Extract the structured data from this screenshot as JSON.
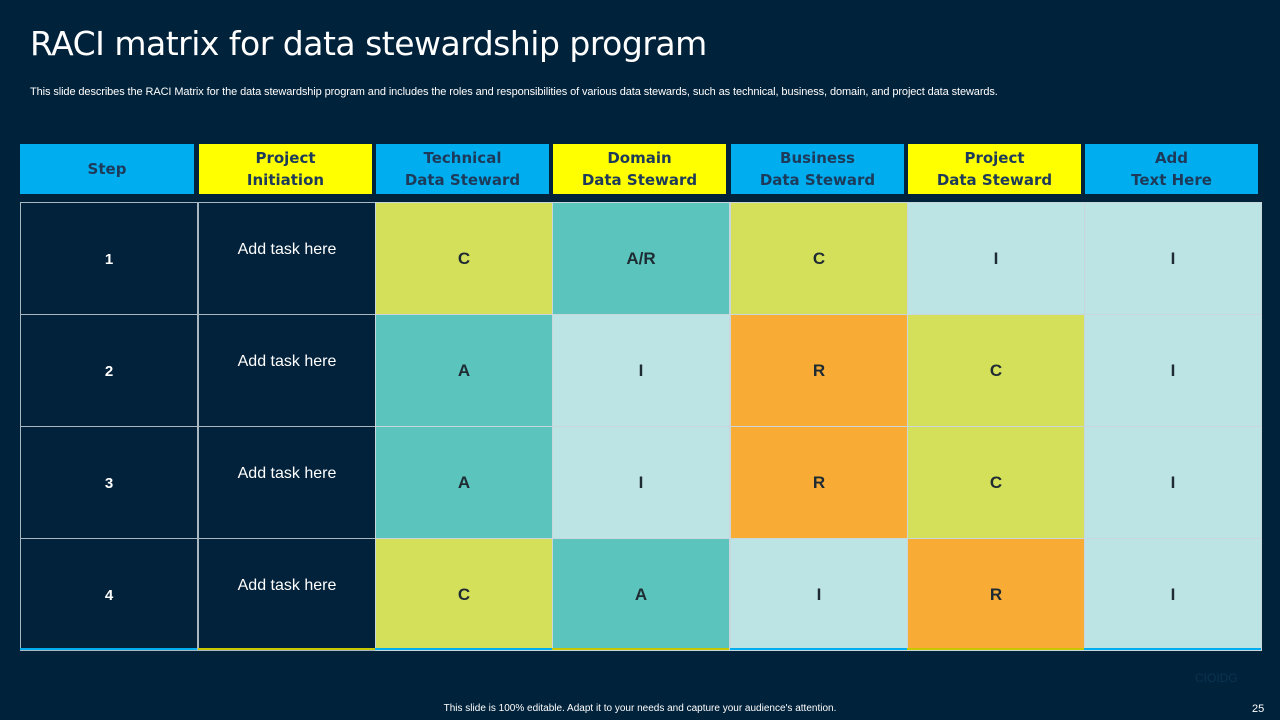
{
  "slide": {
    "title": "RACI matrix for data stewardship program",
    "subtitle": "This slide describes the RACI Matrix for the data stewardship program and includes the roles and responsibilities of various data stewards, such as technical, business, domain, and project data stewards.",
    "footer": "This slide is 100% editable.  Adapt it to your needs and capture your audience's attention.",
    "page_number": "25",
    "watermark": "CIOIDG"
  },
  "colors": {
    "background": "#00223a",
    "header_blue": "#00aeef",
    "header_yellow": "#ffff00",
    "C": "#d4e05a",
    "A": "#5bc4bc",
    "R": "#f9ac35",
    "I": "#bde4e4"
  },
  "table": {
    "headers": [
      {
        "label": "Step",
        "color": "blue"
      },
      {
        "label": "Project\nInitiation",
        "color": "yellow"
      },
      {
        "label": "Technical\nData Steward",
        "color": "blue"
      },
      {
        "label": "Domain\nData Steward",
        "color": "yellow"
      },
      {
        "label": "Business\nData Steward",
        "color": "blue"
      },
      {
        "label": "Project\nData Steward",
        "color": "yellow"
      },
      {
        "label": "Add\nText Here",
        "color": "blue"
      }
    ],
    "rows": [
      {
        "step": "1",
        "task": "Add task here",
        "roles": [
          {
            "value": "C",
            "type": "C"
          },
          {
            "value": "A/R",
            "type": "A"
          },
          {
            "value": "C",
            "type": "C"
          },
          {
            "value": "I",
            "type": "I"
          },
          {
            "value": "I",
            "type": "I"
          }
        ]
      },
      {
        "step": "2",
        "task": "Add task here",
        "roles": [
          {
            "value": "A",
            "type": "A"
          },
          {
            "value": "I",
            "type": "I"
          },
          {
            "value": "R",
            "type": "R"
          },
          {
            "value": "C",
            "type": "C"
          },
          {
            "value": "I",
            "type": "I"
          }
        ]
      },
      {
        "step": "3",
        "task": "Add task here",
        "roles": [
          {
            "value": "A",
            "type": "A"
          },
          {
            "value": "I",
            "type": "I"
          },
          {
            "value": "R",
            "type": "R"
          },
          {
            "value": "C",
            "type": "C"
          },
          {
            "value": "I",
            "type": "I"
          }
        ]
      },
      {
        "step": "4",
        "task": "Add task here",
        "roles": [
          {
            "value": "C",
            "type": "C"
          },
          {
            "value": "A",
            "type": "A"
          },
          {
            "value": "I",
            "type": "I"
          },
          {
            "value": "R",
            "type": "R"
          },
          {
            "value": "I",
            "type": "I"
          }
        ]
      }
    ]
  }
}
